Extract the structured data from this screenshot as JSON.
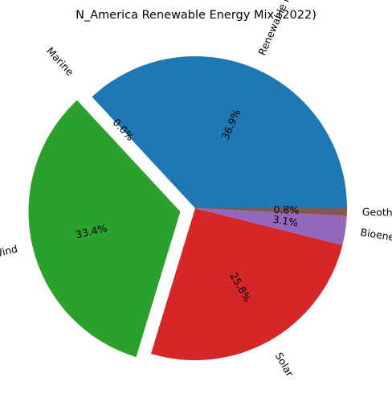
{
  "chart_data": {
    "type": "pie",
    "title": "N_America Renewable Energy Mix (2022)",
    "slices": [
      {
        "label": "Renewable hydropower",
        "value": 36.9,
        "pct_label": "36.9%",
        "color": "#1f77b4",
        "explode": false
      },
      {
        "label": "Marine",
        "value": 0.0,
        "pct_label": "0.0%",
        "color": "#ff7f0e",
        "explode": true
      },
      {
        "label": "Wind",
        "value": 33.4,
        "pct_label": "33.4%",
        "color": "#2ca02c",
        "explode": true
      },
      {
        "label": "Solar",
        "value": 25.8,
        "pct_label": "25.8%",
        "color": "#d62728",
        "explode": false
      },
      {
        "label": "Bioenergy",
        "value": 3.1,
        "pct_label": "3.1%",
        "color": "#9467bd",
        "explode": false
      },
      {
        "label": "Geothermal",
        "value": 0.8,
        "pct_label": "0.8%",
        "color": "#8c564b",
        "explode": false
      }
    ],
    "start_angle_deg": 0,
    "direction": "counterclockwise",
    "legend": "none"
  }
}
